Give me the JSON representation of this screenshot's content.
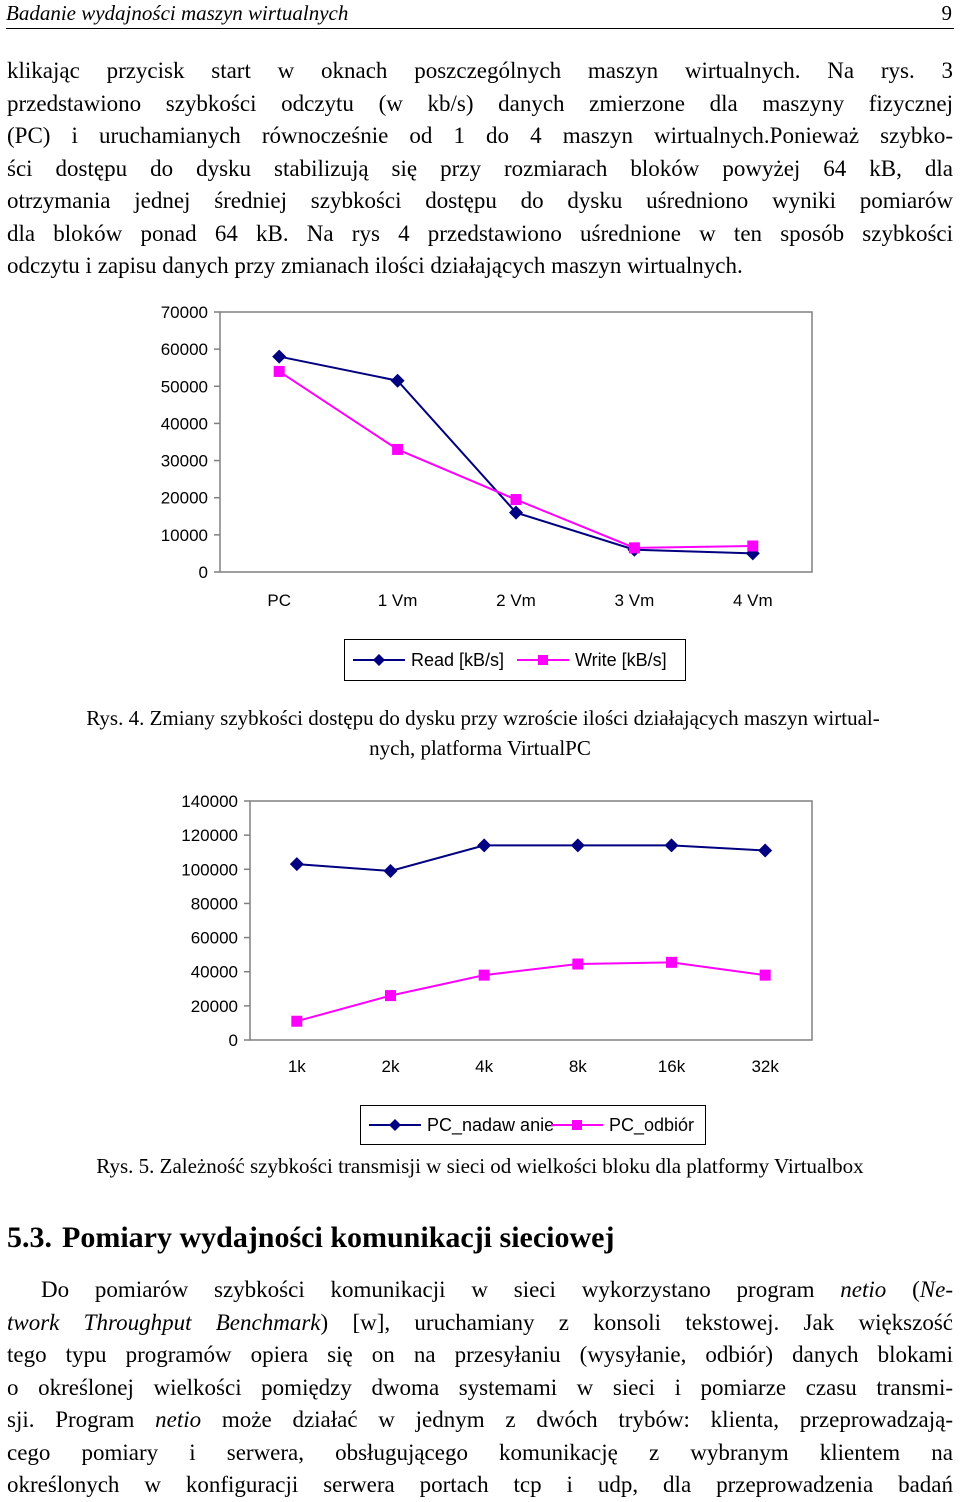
{
  "header": {
    "title": "Badanie wydajności maszyn wirtualnych",
    "page_number": "9"
  },
  "intro_lines": [
    "klikając przycisk start w oknach poszczególnych maszyn wirtualnych. Na rys. 3",
    "przedstawiono szybkości odczytu (w kb/s) danych zmierzone dla maszyny fizycznej",
    "(PC) i uruchamianych równocześnie od 1 do 4 maszyn wirtualnych.Ponieważ szybko-",
    "ści dostępu do dysku stabilizują się przy rozmiarach bloków powyżej 64 kB, dla",
    "otrzymania jednej średniej szybkości dostępu do dysku uśredniono wyniki pomiarów",
    "dla bloków ponad 64 kB. Na rys 4 przedstawiono uśrednione w ten sposób szybkości",
    "odczytu i zapisu danych przy zmianach ilości działających maszyn wirtualnych."
  ],
  "chart_data": [
    {
      "type": "line",
      "categories": [
        "PC",
        "1 Vm",
        "2 Vm",
        "3 Vm",
        "4 Vm"
      ],
      "series": [
        {
          "name": "Read [kB/s]",
          "values": [
            58000,
            51500,
            16000,
            6000,
            5000
          ],
          "color": "#000080",
          "marker": "diamond"
        },
        {
          "name": "Write [kB/s]",
          "values": [
            54000,
            33000,
            19500,
            6500,
            7000
          ],
          "color": "#FF00FF",
          "marker": "square"
        }
      ],
      "ylim": [
        0,
        70000
      ],
      "yticks": [
        "70000",
        "60000",
        "50000",
        "40000",
        "30000",
        "20000",
        "10000",
        "0"
      ],
      "legend_position": "bottom",
      "grid": false
    },
    {
      "type": "line",
      "categories": [
        "1k",
        "2k",
        "4k",
        "8k",
        "16k",
        "32k"
      ],
      "series": [
        {
          "name": "PC_nadaw anie",
          "values": [
            103000,
            99000,
            114000,
            114000,
            114000,
            111000
          ],
          "color": "#000080",
          "marker": "diamond"
        },
        {
          "name": "PC_odbiór",
          "values": [
            11000,
            26000,
            38000,
            44500,
            45500,
            38000
          ],
          "color": "#FF00FF",
          "marker": "square"
        }
      ],
      "ylim": [
        0,
        140000
      ],
      "yticks": [
        "140000",
        "120000",
        "100000",
        "80000",
        "60000",
        "40000",
        "20000",
        "0"
      ],
      "legend_position": "bottom",
      "grid": false
    }
  ],
  "caption4": {
    "line1": "Rys. 4. Zmiany szybkości dostępu do dysku przy wzroście ilości działających maszyn wirtual-",
    "line2": "nych, platforma VirtualPC"
  },
  "caption5": "Rys. 5. Zależność szybkości transmisji w sieci od wielkości bloku dla platformy Virtualbox",
  "section": {
    "number": "5.3.",
    "title": "Pomiary wydajności komunikacji sieciowej"
  },
  "body": {
    "l1a": "Do pomiarów szybkości komunikacji w sieci wykorzystano program ",
    "l1b": "netio",
    "l1c": " (",
    "l1d": "Ne-",
    "l2a": "twork Throughput Benchmark",
    "l2b": ") [w], uruchamiany z konsoli tekstowej. Jak większość",
    "l3": "tego typu programów opiera się on na przesyłaniu (wysyłanie, odbiór) danych blokami",
    "l4": "o określonej wielkości pomiędzy dwoma systemami w sieci i pomiarze czasu transmi-",
    "l5a": "sji. Program ",
    "l5b": "netio",
    "l5c": " może działać w jednym z dwóch trybów: klienta, przeprowadzają-",
    "l6": "cego pomiary i serwera, obsługującego komunikację z wybranym klientem na",
    "l7": "określonych w konfiguracji serwera portach tcp i udp, dla przeprowadzenia badań"
  }
}
